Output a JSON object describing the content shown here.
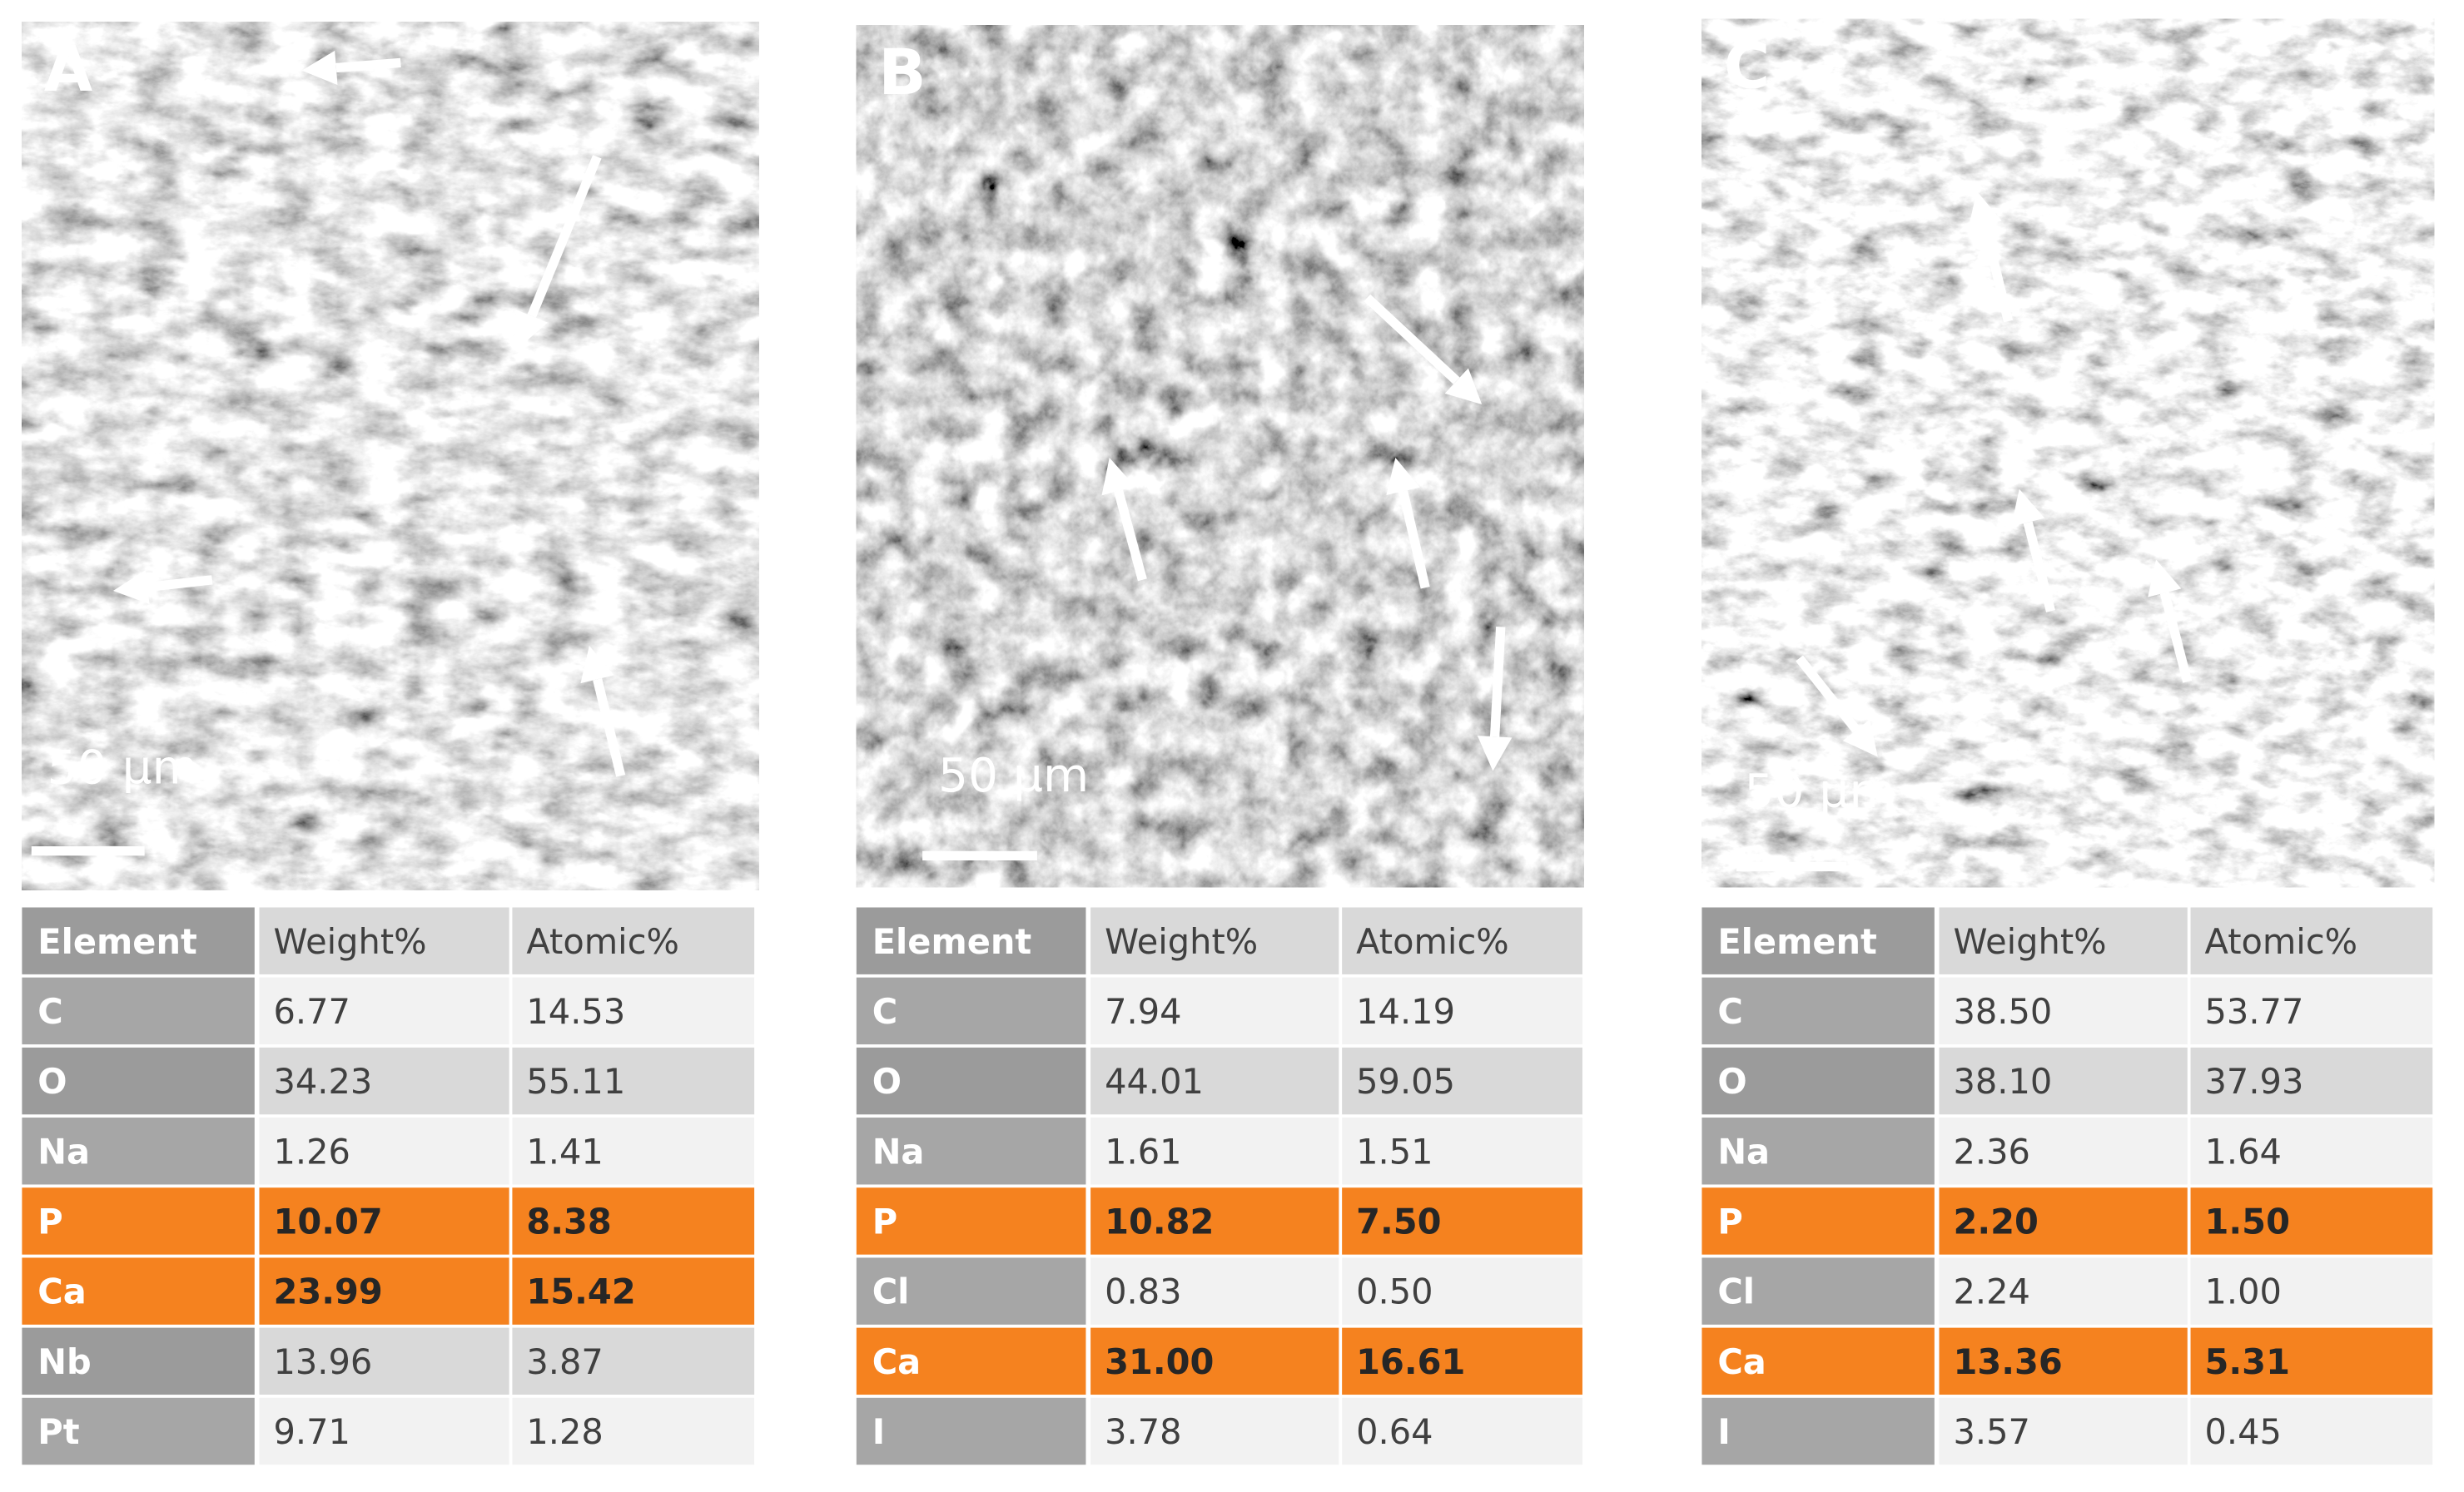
{
  "panels": [
    {
      "label": "A",
      "scale_bar": "50 µm",
      "table": {
        "header": [
          "Element",
          "Weight%",
          "Atomic%"
        ],
        "rows": [
          {
            "cells": [
              "C",
              "6.77",
              "14.53"
            ],
            "highlight": false
          },
          {
            "cells": [
              "O",
              "34.23",
              "55.11"
            ],
            "highlight": false
          },
          {
            "cells": [
              "Na",
              "1.26",
              "1.41"
            ],
            "highlight": false
          },
          {
            "cells": [
              "P",
              "10.07",
              "8.38"
            ],
            "highlight": true
          },
          {
            "cells": [
              "Ca",
              "23.99",
              "15.42"
            ],
            "highlight": true
          },
          {
            "cells": [
              "Nb",
              "13.96",
              "3.87"
            ],
            "highlight": false
          },
          {
            "cells": [
              "Pt",
              "9.71",
              "1.28"
            ],
            "highlight": false
          }
        ]
      }
    },
    {
      "label": "B",
      "scale_bar": "50 µm",
      "table": {
        "header": [
          "Element",
          "Weight%",
          "Atomic%"
        ],
        "rows": [
          {
            "cells": [
              "C",
              "7.94",
              "14.19"
            ],
            "highlight": false
          },
          {
            "cells": [
              "O",
              "44.01",
              "59.05"
            ],
            "highlight": false
          },
          {
            "cells": [
              "Na",
              "1.61",
              "1.51"
            ],
            "highlight": false
          },
          {
            "cells": [
              "P",
              "10.82",
              "7.50"
            ],
            "highlight": true
          },
          {
            "cells": [
              "Cl",
              "0.83",
              "0.50"
            ],
            "highlight": false
          },
          {
            "cells": [
              "Ca",
              "31.00",
              "16.61"
            ],
            "highlight": true
          },
          {
            "cells": [
              "I",
              "3.78",
              "0.64"
            ],
            "highlight": false
          }
        ]
      }
    },
    {
      "label": "C",
      "scale_bar": "50 µm",
      "table": {
        "header": [
          "Element",
          "Weight%",
          "Atomic%"
        ],
        "rows": [
          {
            "cells": [
              "C",
              "38.50",
              "53.77"
            ],
            "highlight": false
          },
          {
            "cells": [
              "O",
              "38.10",
              "37.93"
            ],
            "highlight": false
          },
          {
            "cells": [
              "Na",
              "2.36",
              "1.64"
            ],
            "highlight": false
          },
          {
            "cells": [
              "P",
              "2.20",
              "1.50"
            ],
            "highlight": true
          },
          {
            "cells": [
              "Cl",
              "2.24",
              "1.00"
            ],
            "highlight": false
          },
          {
            "cells": [
              "Ca",
              "13.36",
              "5.31"
            ],
            "highlight": true
          },
          {
            "cells": [
              "I",
              "3.57",
              "0.45"
            ],
            "highlight": false
          }
        ]
      }
    }
  ]
}
